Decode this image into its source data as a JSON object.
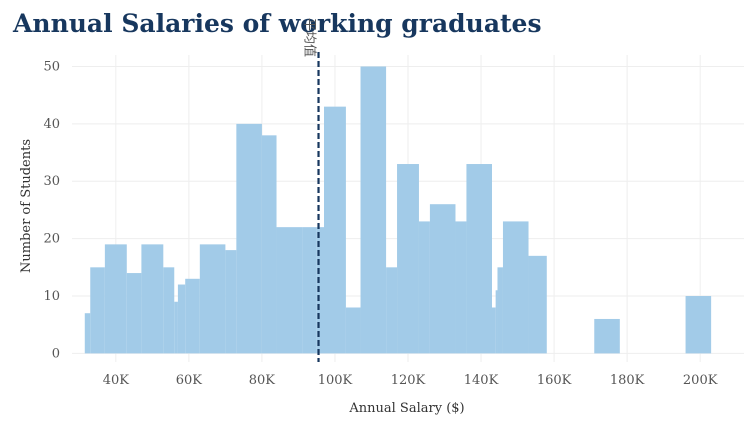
{
  "chart_data": {
    "type": "bar",
    "title": "Annual Salaries of working graduates",
    "xlabel": "Annual Salary ($)",
    "ylabel": "Number of Students",
    "x_ticks": [
      {
        "value": 40000,
        "label": "40K"
      },
      {
        "value": 60000,
        "label": "60K"
      },
      {
        "value": 80000,
        "label": "80K"
      },
      {
        "value": 100000,
        "label": "100K"
      },
      {
        "value": 120000,
        "label": "120K"
      },
      {
        "value": 140000,
        "label": "140K"
      },
      {
        "value": 160000,
        "label": "160K"
      },
      {
        "value": 180000,
        "label": "180K"
      },
      {
        "value": 200000,
        "label": "200K"
      }
    ],
    "y_ticks": [
      {
        "value": 0,
        "label": "0"
      },
      {
        "value": 10,
        "label": "10"
      },
      {
        "value": 20,
        "label": "20"
      },
      {
        "value": 30,
        "label": "30"
      },
      {
        "value": 40,
        "label": "40"
      },
      {
        "value": 50,
        "label": "50"
      }
    ],
    "xlim": [
      28000,
      212000
    ],
    "ylim": [
      -1.5,
      52
    ],
    "grid": true,
    "mean_line": {
      "value": 95500,
      "label": "平均值"
    },
    "bars": [
      {
        "x0": 31500,
        "x1": 33000,
        "y": 7
      },
      {
        "x0": 33000,
        "x1": 37000,
        "y": 15
      },
      {
        "x0": 37000,
        "x1": 43000,
        "y": 19
      },
      {
        "x0": 43000,
        "x1": 47000,
        "y": 14
      },
      {
        "x0": 47000,
        "x1": 53000,
        "y": 19
      },
      {
        "x0": 53000,
        "x1": 56000,
        "y": 15
      },
      {
        "x0": 56000,
        "x1": 57000,
        "y": 9
      },
      {
        "x0": 57000,
        "x1": 59000,
        "y": 12
      },
      {
        "x0": 59000,
        "x1": 63000,
        "y": 13
      },
      {
        "x0": 63000,
        "x1": 70000,
        "y": 19
      },
      {
        "x0": 70000,
        "x1": 73000,
        "y": 18
      },
      {
        "x0": 73000,
        "x1": 80000,
        "y": 40
      },
      {
        "x0": 80000,
        "x1": 84000,
        "y": 38
      },
      {
        "x0": 84000,
        "x1": 91000,
        "y": 22
      },
      {
        "x0": 91000,
        "x1": 95000,
        "y": 22
      },
      {
        "x0": 95000,
        "x1": 97000,
        "y": 22
      },
      {
        "x0": 97000,
        "x1": 103000,
        "y": 43
      },
      {
        "x0": 103000,
        "x1": 107000,
        "y": 8
      },
      {
        "x0": 107000,
        "x1": 114000,
        "y": 50
      },
      {
        "x0": 114000,
        "x1": 117000,
        "y": 15
      },
      {
        "x0": 117000,
        "x1": 123000,
        "y": 33
      },
      {
        "x0": 123000,
        "x1": 126000,
        "y": 23
      },
      {
        "x0": 126000,
        "x1": 133000,
        "y": 26
      },
      {
        "x0": 133000,
        "x1": 136000,
        "y": 23
      },
      {
        "x0": 136000,
        "x1": 143000,
        "y": 33
      },
      {
        "x0": 143000,
        "x1": 144000,
        "y": 8
      },
      {
        "x0": 144000,
        "x1": 144500,
        "y": 11
      },
      {
        "x0": 144500,
        "x1": 146000,
        "y": 15
      },
      {
        "x0": 146000,
        "x1": 153000,
        "y": 23
      },
      {
        "x0": 153000,
        "x1": 158000,
        "y": 17
      },
      {
        "x0": 171000,
        "x1": 178000,
        "y": 6
      },
      {
        "x0": 196000,
        "x1": 203000,
        "y": 10
      }
    ]
  },
  "colors": {
    "bar": "#a2cbe8",
    "mean_line": "#17375e",
    "grid": "#eeeeee",
    "title": "#17375e"
  }
}
